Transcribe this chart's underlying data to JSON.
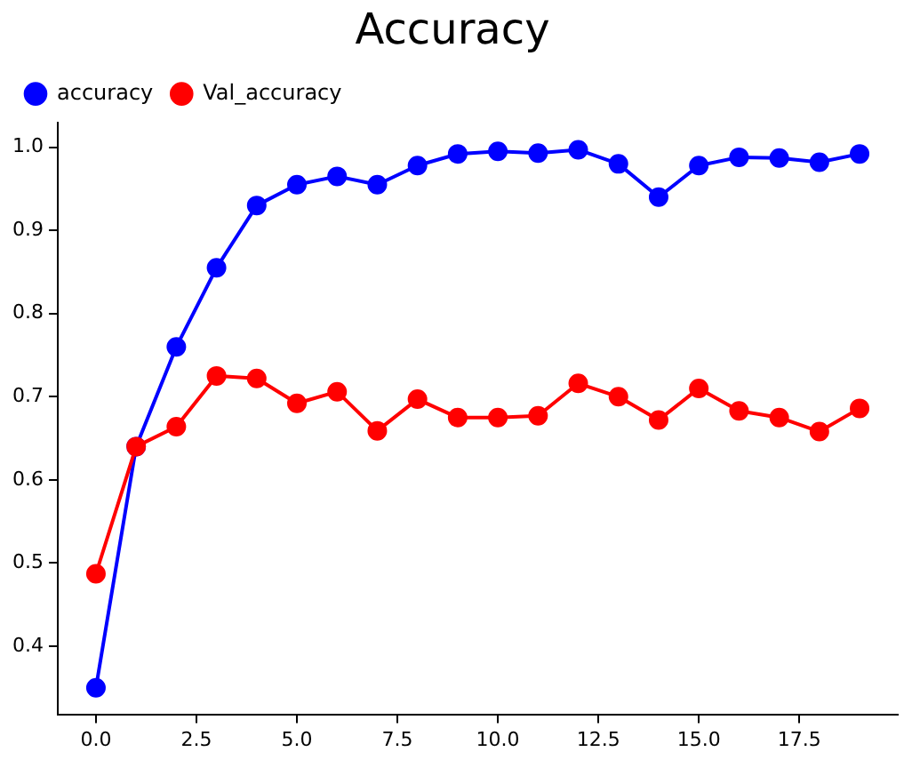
{
  "chart_data": {
    "type": "line",
    "title": "Accuracy",
    "x": [
      0,
      1,
      2,
      3,
      4,
      5,
      6,
      7,
      8,
      9,
      10,
      11,
      12,
      13,
      14,
      15,
      16,
      17,
      18,
      19
    ],
    "series": [
      {
        "name": "accuracy",
        "color": "#0000ff",
        "values": [
          0.35,
          0.64,
          0.76,
          0.855,
          0.93,
          0.955,
          0.965,
          0.955,
          0.978,
          0.992,
          0.995,
          0.993,
          0.997,
          0.98,
          0.94,
          0.978,
          0.988,
          0.987,
          0.982,
          0.992
        ]
      },
      {
        "name": "Val_accuracy",
        "color": "#ff0000",
        "values": [
          0.487,
          0.64,
          0.664,
          0.725,
          0.722,
          0.692,
          0.706,
          0.659,
          0.697,
          0.675,
          0.675,
          0.677,
          0.716,
          0.7,
          0.672,
          0.71,
          0.683,
          0.675,
          0.658,
          0.686
        ]
      }
    ],
    "xlim": [
      -0.95,
      19.95
    ],
    "xticks": [
      {
        "value": 0,
        "label": "0.0"
      },
      {
        "value": 2.5,
        "label": "2.5"
      },
      {
        "value": 5,
        "label": "5.0"
      },
      {
        "value": 7.5,
        "label": "7.5"
      },
      {
        "value": 10,
        "label": "10.0"
      },
      {
        "value": 12.5,
        "label": "12.5"
      },
      {
        "value": 15,
        "label": "15.0"
      },
      {
        "value": 17.5,
        "label": "17.5"
      }
    ],
    "ylim": [
      0.318,
      1.03
    ],
    "yticks": [
      {
        "value": 0.4,
        "label": "0.4"
      },
      {
        "value": 0.5,
        "label": "0.5"
      },
      {
        "value": 0.6,
        "label": "0.6"
      },
      {
        "value": 0.7,
        "label": "0.7"
      },
      {
        "value": 0.8,
        "label": "0.8"
      },
      {
        "value": 0.9,
        "label": "0.9"
      },
      {
        "value": 1,
        "label": "1.0"
      }
    ],
    "grid": false,
    "legend": "top left",
    "marker": "circle",
    "line_style": "solid"
  }
}
